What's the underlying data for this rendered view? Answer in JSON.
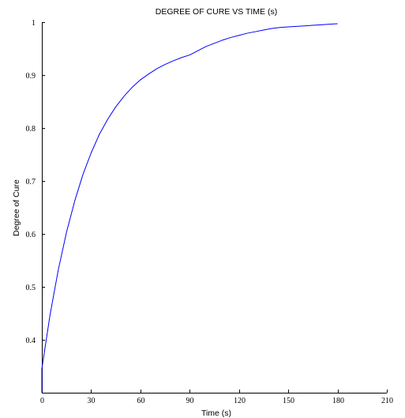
{
  "chart_data": {
    "type": "line",
    "title": "DEGREE OF CURE VS TIME (s)",
    "xlabel": "Time (s)",
    "ylabel": "Degree of Cure",
    "xlim": [
      0,
      210
    ],
    "ylim": [
      0.3,
      1.0
    ],
    "x_ticks": [
      "0",
      "30",
      "60",
      "90",
      "120",
      "150",
      "180",
      "210"
    ],
    "y_ticks": [
      "0.4",
      "0.5",
      "0.6",
      "0.7",
      "0.8",
      "0.9",
      "1"
    ],
    "grid": false,
    "series": [
      {
        "color": "#0000ff",
        "x": [
          0,
          5,
          10,
          15,
          20,
          25,
          30,
          35,
          40,
          45,
          50,
          55,
          60,
          65,
          70,
          75,
          80,
          85,
          90,
          95,
          100,
          105,
          110,
          115,
          120,
          125,
          130,
          135,
          140,
          145,
          150,
          155,
          160,
          165,
          170,
          175,
          180
        ],
        "y": [
          0.345,
          0.447,
          0.532,
          0.603,
          0.662,
          0.712,
          0.753,
          0.788,
          0.816,
          0.84,
          0.86,
          0.877,
          0.891,
          0.902,
          0.912,
          0.92,
          0.927,
          0.933,
          0.938,
          0.946,
          0.954,
          0.96,
          0.966,
          0.971,
          0.975,
          0.979,
          0.982,
          0.985,
          0.988,
          0.99,
          0.991,
          0.992,
          0.993,
          0.994,
          0.995,
          0.996,
          0.997
        ]
      }
    ]
  }
}
